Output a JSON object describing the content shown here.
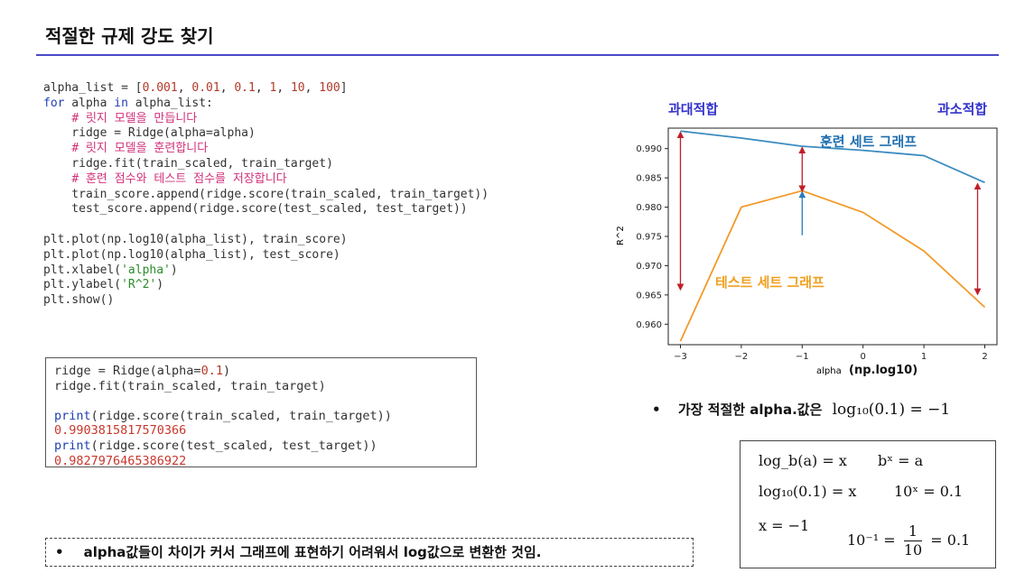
{
  "page": {
    "title": "적절한 규제 강도 찾기",
    "note": "alpha값들이 차이가 커서 그래프에 표현하기 어려워서 log값으로 변환한 것임.",
    "note_bullet": "•"
  },
  "code": {
    "lines": [
      "alpha_list = [0.001, 0.01, 0.1, 1, 10, 100]",
      "for alpha in alpha_list:",
      "    # 릿지 모델을 만듭니다",
      "    ridge = Ridge(alpha=alpha)",
      "    # 릿지 모델을 훈련합니다",
      "    ridge.fit(train_scaled, train_target)",
      "    # 훈련 점수와 테스트 점수를 저장합니다",
      "    train_score.append(ridge.score(train_scaled, train_target))",
      "    test_score.append(ridge.score(test_scaled, test_target))",
      "",
      "plt.plot(np.log10(alpha_list), train_score)",
      "plt.plot(np.log10(alpha_list), test_score)",
      "plt.xlabel('alpha')",
      "plt.ylabel('R^2')",
      "plt.show()"
    ]
  },
  "output": {
    "line1": "ridge = Ridge(alpha=0.1)",
    "line2": "ridge.fit(train_scaled, train_target)",
    "line3": "print(ridge.score(train_scaled, train_target))",
    "val1": "0.9903815817570366",
    "line4": "print(ridge.score(test_scaled, test_target))",
    "val2": "0.9827976465386922"
  },
  "annotations": {
    "overfit": "과대적합",
    "underfit": "과소적합",
    "train_label": "훈련 세트 그래프",
    "test_label": "테스트 세트 그래프",
    "xlabel_extra": "(np.log10)",
    "overfit_color": "#3333cc",
    "train_label_color": "#1f6fb0",
    "test_label_color": "#f0a020",
    "arrow_red": "#c01f2a",
    "arrow_blue": "#2a7ac0"
  },
  "bullet": {
    "text": "가장 적절한 alpha.값은",
    "equation": "log₁₀(0.1) = −1"
  },
  "math_box": {
    "r1a": "log_b(a) = x",
    "r1b": "bˣ = a",
    "r2a": "log₁₀(0.1) = x",
    "r2b": "10ˣ = 0.1",
    "r3a": "x = −1",
    "r3b_left": "10⁻¹ =",
    "r3b_num": "1",
    "r3b_den": "10",
    "r3b_right": "= 0.1"
  },
  "chart_data": {
    "type": "line",
    "xlabel": "alpha",
    "ylabel": "R^2",
    "x": [
      -3,
      -2,
      -1,
      0,
      1,
      2
    ],
    "xlim": [
      -3.2,
      2.2
    ],
    "ylim": [
      0.9565,
      0.9935
    ],
    "xticks": [
      -3,
      -2,
      -1,
      0,
      1,
      2
    ],
    "yticks": [
      0.96,
      0.965,
      0.97,
      0.975,
      0.98,
      0.985,
      0.99
    ],
    "series": [
      {
        "name": "훈련 세트 그래프",
        "color": "#3a8bc0",
        "values": [
          0.993,
          0.9918,
          0.9904,
          0.9897,
          0.9888,
          0.9842
        ]
      },
      {
        "name": "테스트 세트 그래프",
        "color": "#f29a2a",
        "values": [
          0.9571,
          0.98,
          0.9828,
          0.9791,
          0.9725,
          0.9629
        ]
      }
    ]
  }
}
